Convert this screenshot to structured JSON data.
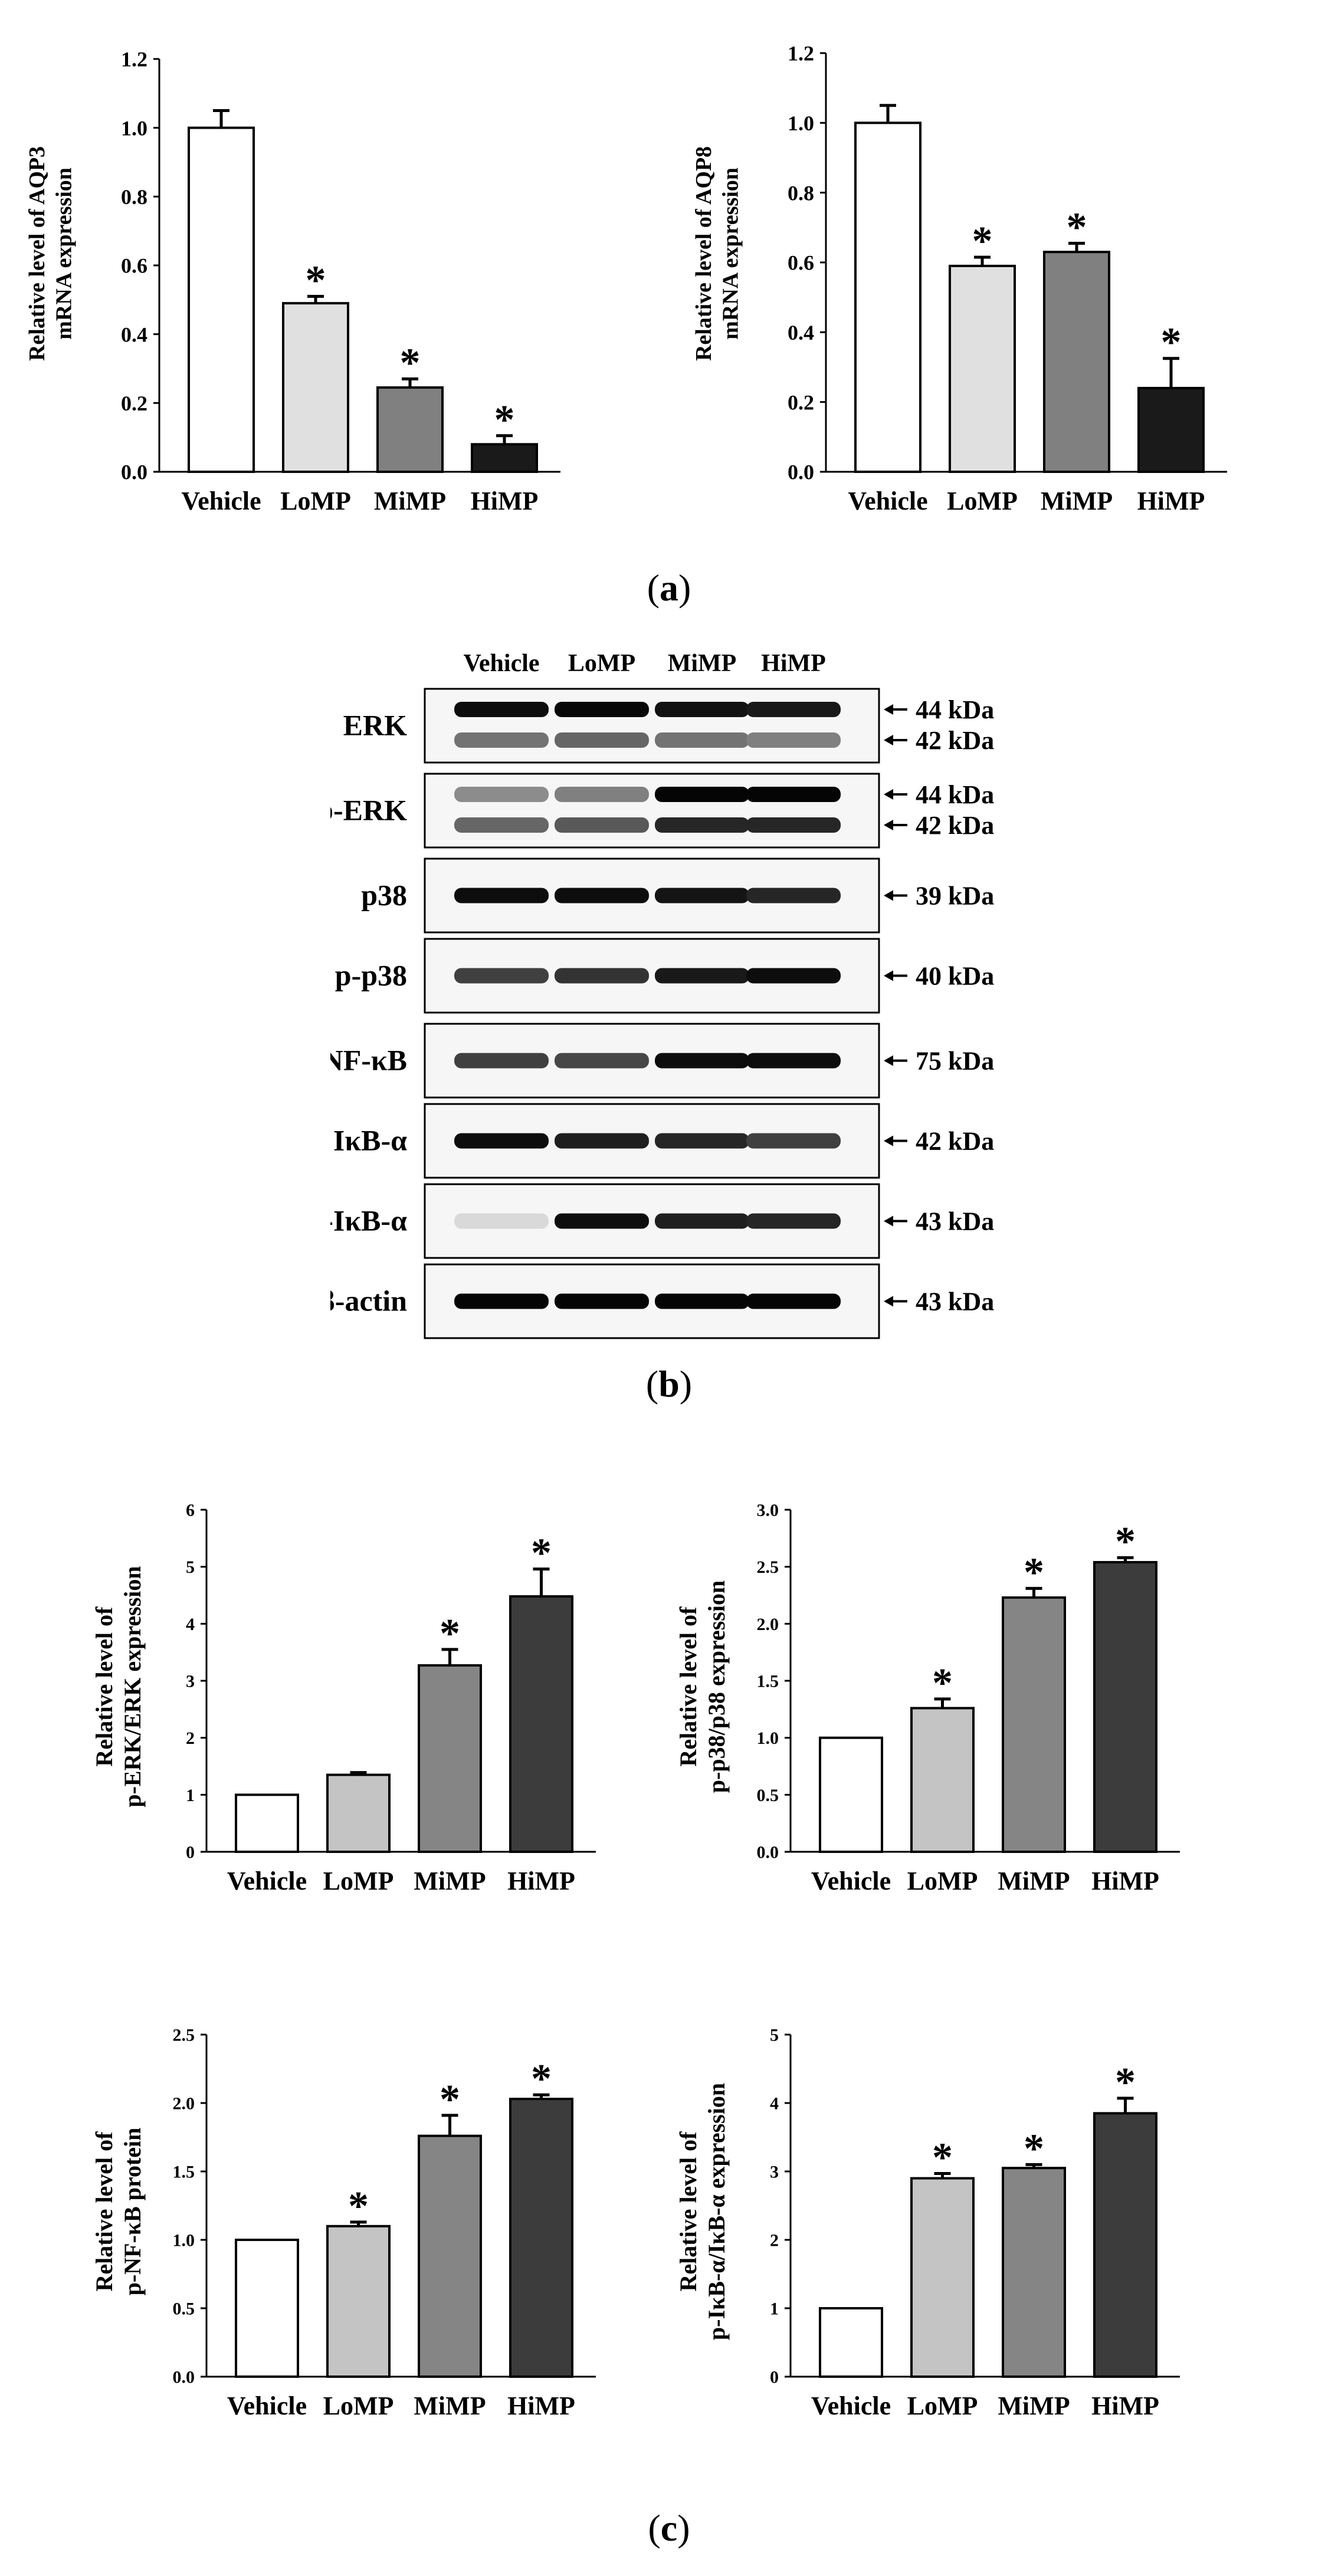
{
  "panels": {
    "a": "a",
    "b": "b",
    "c": "c"
  },
  "chart_data": [
    {
      "id": "aqp3",
      "type": "bar",
      "categories": [
        "Vehicle",
        "LoMP",
        "MiMP",
        "HiMP"
      ],
      "values": [
        1.0,
        0.49,
        0.245,
        0.08
      ],
      "errors": [
        0.05,
        0.02,
        0.025,
        0.025
      ],
      "significant": [
        false,
        true,
        true,
        true
      ],
      "ylim": [
        0,
        1.2
      ],
      "yticks": [
        "0.0",
        "0.2",
        "0.4",
        "0.6",
        "0.8",
        "1.0",
        "1.2"
      ],
      "ylabel": [
        "Relative level of AQP3",
        "mRNA expression"
      ],
      "colors": [
        "#ffffff",
        "#e0e0e0",
        "#808080",
        "#1a1a1a"
      ]
    },
    {
      "id": "aqp8",
      "type": "bar",
      "categories": [
        "Vehicle",
        "LoMP",
        "MiMP",
        "HiMP"
      ],
      "values": [
        1.0,
        0.59,
        0.63,
        0.24
      ],
      "errors": [
        0.05,
        0.025,
        0.025,
        0.085
      ],
      "significant": [
        false,
        true,
        true,
        true
      ],
      "ylim": [
        0,
        1.2
      ],
      "yticks": [
        "0.0",
        "0.2",
        "0.4",
        "0.6",
        "0.8",
        "1.0",
        "1.2"
      ],
      "ylabel": [
        "Relative level of AQP8",
        "mRNA expression"
      ],
      "colors": [
        "#ffffff",
        "#e0e0e0",
        "#808080",
        "#1a1a1a"
      ]
    },
    {
      "id": "perk",
      "type": "bar",
      "categories": [
        "Vehicle",
        "LoMP",
        "MiMP",
        "HiMP"
      ],
      "values": [
        1.0,
        1.35,
        3.27,
        4.48
      ],
      "errors": [
        0,
        0.04,
        0.28,
        0.48
      ],
      "significant": [
        false,
        false,
        true,
        true
      ],
      "ylim": [
        0,
        6
      ],
      "yticks": [
        "0",
        "1",
        "2",
        "3",
        "4",
        "5",
        "6"
      ],
      "ylabel": [
        "Relative level of",
        "p-ERK/ERK expression"
      ],
      "colors": [
        "#ffffff",
        "#c4c4c4",
        "#858585",
        "#3c3c3c"
      ]
    },
    {
      "id": "pp38",
      "type": "bar",
      "categories": [
        "Vehicle",
        "LoMP",
        "MiMP",
        "HiMP"
      ],
      "values": [
        1.0,
        1.26,
        2.23,
        2.54
      ],
      "errors": [
        0,
        0.08,
        0.08,
        0.04
      ],
      "significant": [
        false,
        true,
        true,
        true
      ],
      "ylim": [
        0,
        3.0
      ],
      "yticks": [
        "0.0",
        "0.5",
        "1.0",
        "1.5",
        "2.0",
        "2.5",
        "3.0"
      ],
      "ylabel": [
        "Relative level of",
        "p-p38/p38 expression"
      ],
      "colors": [
        "#ffffff",
        "#c4c4c4",
        "#858585",
        "#3c3c3c"
      ]
    },
    {
      "id": "pnfkb",
      "type": "bar",
      "categories": [
        "Vehicle",
        "LoMP",
        "MiMP",
        "HiMP"
      ],
      "values": [
        1.0,
        1.1,
        1.76,
        2.03
      ],
      "errors": [
        0,
        0.03,
        0.15,
        0.03
      ],
      "significant": [
        false,
        true,
        true,
        true
      ],
      "ylim": [
        0,
        2.5
      ],
      "yticks": [
        "0.0",
        "0.5",
        "1.0",
        "1.5",
        "2.0",
        "2.5"
      ],
      "ylabel": [
        "Relative level of",
        "p-NF-κB protein"
      ],
      "colors": [
        "#ffffff",
        "#c4c4c4",
        "#858585",
        "#3c3c3c"
      ]
    },
    {
      "id": "pikba",
      "type": "bar",
      "categories": [
        "Vehicle",
        "LoMP",
        "MiMP",
        "HiMP"
      ],
      "values": [
        1.0,
        2.9,
        3.05,
        3.85
      ],
      "errors": [
        0,
        0.07,
        0.05,
        0.22
      ],
      "significant": [
        false,
        true,
        true,
        true
      ],
      "ylim": [
        0,
        5
      ],
      "yticks": [
        "0",
        "1",
        "2",
        "3",
        "4",
        "5"
      ],
      "ylabel": [
        "Relative level of",
        "p-IκB-α/IκB-α expression"
      ],
      "colors": [
        "#ffffff",
        "#c4c4c4",
        "#858585",
        "#3c3c3c"
      ]
    }
  ],
  "blot": {
    "lanes": [
      "Vehicle",
      "LoMP",
      "MiMP",
      "HiMP"
    ],
    "rows": [
      {
        "label": "ERK",
        "kda": [
          "44 kDa",
          "42 kDa"
        ]
      },
      {
        "label": "p-ERK",
        "kda": [
          "44 kDa",
          "42 kDa"
        ]
      },
      {
        "label": "p38",
        "kda": [
          "39 kDa"
        ]
      },
      {
        "label": "p-p38",
        "kda": [
          "40 kDa"
        ]
      },
      {
        "label": "p-NF-κB",
        "kda": [
          "75 kDa"
        ]
      },
      {
        "label": "IκB-α",
        "kda": [
          "42 kDa"
        ]
      },
      {
        "label": "p-IκB-α",
        "kda": [
          "43 kDa"
        ]
      },
      {
        "label": "β-actin",
        "kda": [
          "43 kDa"
        ]
      }
    ]
  }
}
